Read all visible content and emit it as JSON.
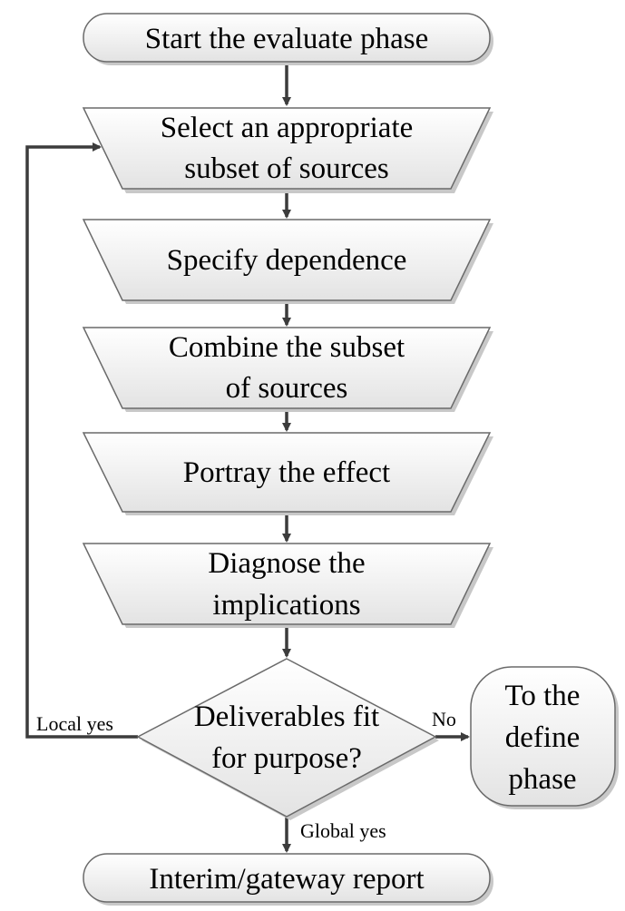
{
  "colors": {
    "shape_fill_top": "#ffffff",
    "shape_fill_bottom": "#e3e3e3",
    "shape_stroke": "#6a6a6a",
    "connector": "#3c3c3c",
    "shadow": "#c8c8c8"
  },
  "nodes": {
    "start": {
      "lines": [
        "Start the evaluate phase"
      ]
    },
    "select": {
      "lines": [
        "Select an appropriate",
        "subset of sources"
      ]
    },
    "specify": {
      "lines": [
        "Specify dependence"
      ]
    },
    "combine": {
      "lines": [
        "Combine the subset",
        "of sources"
      ]
    },
    "portray": {
      "lines": [
        "Portray the effect"
      ]
    },
    "diagnose": {
      "lines": [
        "Diagnose the",
        "implications"
      ]
    },
    "decision": {
      "lines": [
        "Deliverables fit",
        "for purpose?"
      ]
    },
    "define": {
      "lines": [
        "To the",
        "define",
        "phase"
      ]
    },
    "report": {
      "lines": [
        "Interim/gateway report"
      ]
    }
  },
  "edges": {
    "local_yes": "Local yes",
    "no": "No",
    "global_yes": "Global yes"
  }
}
